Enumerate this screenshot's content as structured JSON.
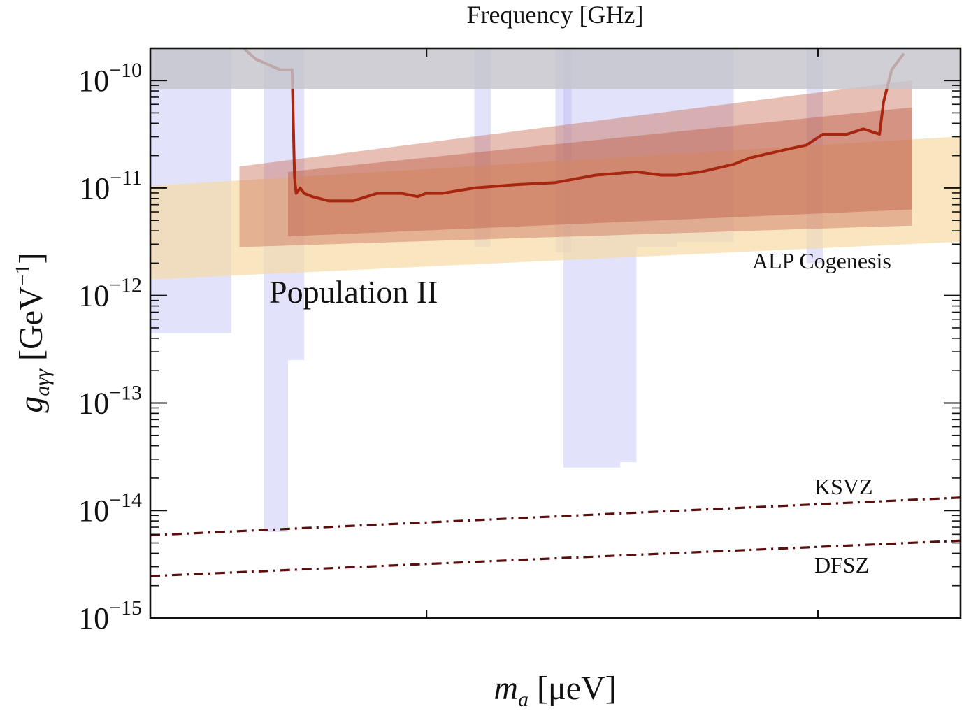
{
  "chart_data": {
    "type": "area",
    "title": "Frequency  [GHz]",
    "xlabel": {
      "sym": "m",
      "sub": "a",
      "unit": "  [μeV]"
    },
    "ylabel": {
      "sym": "g",
      "sub": "aγγ",
      "unit": "  [GeV",
      "unit_sup": "−1",
      "unit_end": "]"
    },
    "xlim": [
      0,
      1
    ],
    "ylim": [
      -15,
      -9.7
    ],
    "y_ticks": [
      {
        "value": -10,
        "base": "10",
        "exp": "−10"
      },
      {
        "value": -11,
        "base": "10",
        "exp": "−11"
      },
      {
        "value": -12,
        "base": "10",
        "exp": "−12"
      },
      {
        "value": -13,
        "base": "10",
        "exp": "−13"
      },
      {
        "value": -14,
        "base": "10",
        "exp": "−14"
      },
      {
        "value": -15,
        "base": "10",
        "exp": "−15"
      }
    ],
    "x_major_ticks": [
      0.341,
      0.824
    ],
    "top_excluded_above": -10.08,
    "annotations": {
      "population": "Population II",
      "alp": "ALP Cogenesis",
      "ksvz": "KSVZ",
      "dfsz": "DFSZ"
    },
    "series": [
      {
        "name": "KSVZ",
        "style": "dashdot",
        "x": [
          0,
          1
        ],
        "y": [
          -14.23,
          -13.88
        ]
      },
      {
        "name": "DFSZ",
        "style": "dashdot",
        "x": [
          0,
          1
        ],
        "y": [
          -14.61,
          -14.28
        ]
      },
      {
        "name": "ALP Cogenesis band",
        "x": [
          0,
          1
        ],
        "y_low": [
          -11.85,
          -11.5
        ],
        "y_high": [
          -10.98,
          -10.52
        ]
      },
      {
        "name": "Population II outer band",
        "x": [
          0.11,
          0.94
        ],
        "y_low": [
          -11.55,
          -11.35
        ],
        "y_high": [
          -10.8,
          -10.0
        ]
      },
      {
        "name": "Population II inner band",
        "x": [
          0.17,
          0.94
        ],
        "y_low": [
          -11.45,
          -11.2
        ],
        "y_high": [
          -10.85,
          -10.25
        ]
      },
      {
        "name": "Population II median",
        "x": [
          0.115,
          0.13,
          0.16,
          0.175,
          0.178,
          0.18,
          0.185,
          0.19,
          0.2,
          0.22,
          0.25,
          0.28,
          0.31,
          0.33,
          0.34,
          0.36,
          0.4,
          0.45,
          0.5,
          0.55,
          0.6,
          0.63,
          0.65,
          0.68,
          0.72,
          0.74,
          0.78,
          0.81,
          0.83,
          0.86,
          0.88,
          0.9,
          0.905,
          0.915,
          0.93
        ],
        "y": [
          -9.7,
          -9.8,
          -9.9,
          -9.9,
          -10.9,
          -11.05,
          -11.0,
          -11.05,
          -11.08,
          -11.12,
          -11.12,
          -11.05,
          -11.05,
          -11.08,
          -11.05,
          -11.05,
          -11.0,
          -10.97,
          -10.95,
          -10.88,
          -10.85,
          -10.88,
          -10.88,
          -10.85,
          -10.78,
          -10.72,
          -10.65,
          -10.6,
          -10.5,
          -10.5,
          -10.45,
          -10.5,
          -10.2,
          -9.9,
          -9.75
        ]
      }
    ],
    "exclusions": [
      {
        "name": "haloscope limits",
        "regions": [
          {
            "x": [
              0.0,
              0.1
            ],
            "y_low": -12.35
          },
          {
            "x": [
              0.14,
              0.17
            ],
            "y_low": -14.2
          },
          {
            "x": [
              0.17,
              0.19
            ],
            "y_low": -12.6
          },
          {
            "x": [
              0.4,
              0.42
            ],
            "y_low": -11.55
          },
          {
            "x": [
              0.5,
              0.52
            ],
            "y_low": -11.6
          },
          {
            "x": [
              0.51,
              0.58
            ],
            "y_low": -13.6
          },
          {
            "x": [
              0.58,
              0.6
            ],
            "y_low": -13.55
          },
          {
            "x": [
              0.6,
              0.65
            ],
            "y_low": -11.55
          },
          {
            "x": [
              0.65,
              0.72
            ],
            "y_low": -11.5
          },
          {
            "x": [
              0.81,
              0.83
            ],
            "y_low": -11.7
          }
        ]
      }
    ]
  }
}
